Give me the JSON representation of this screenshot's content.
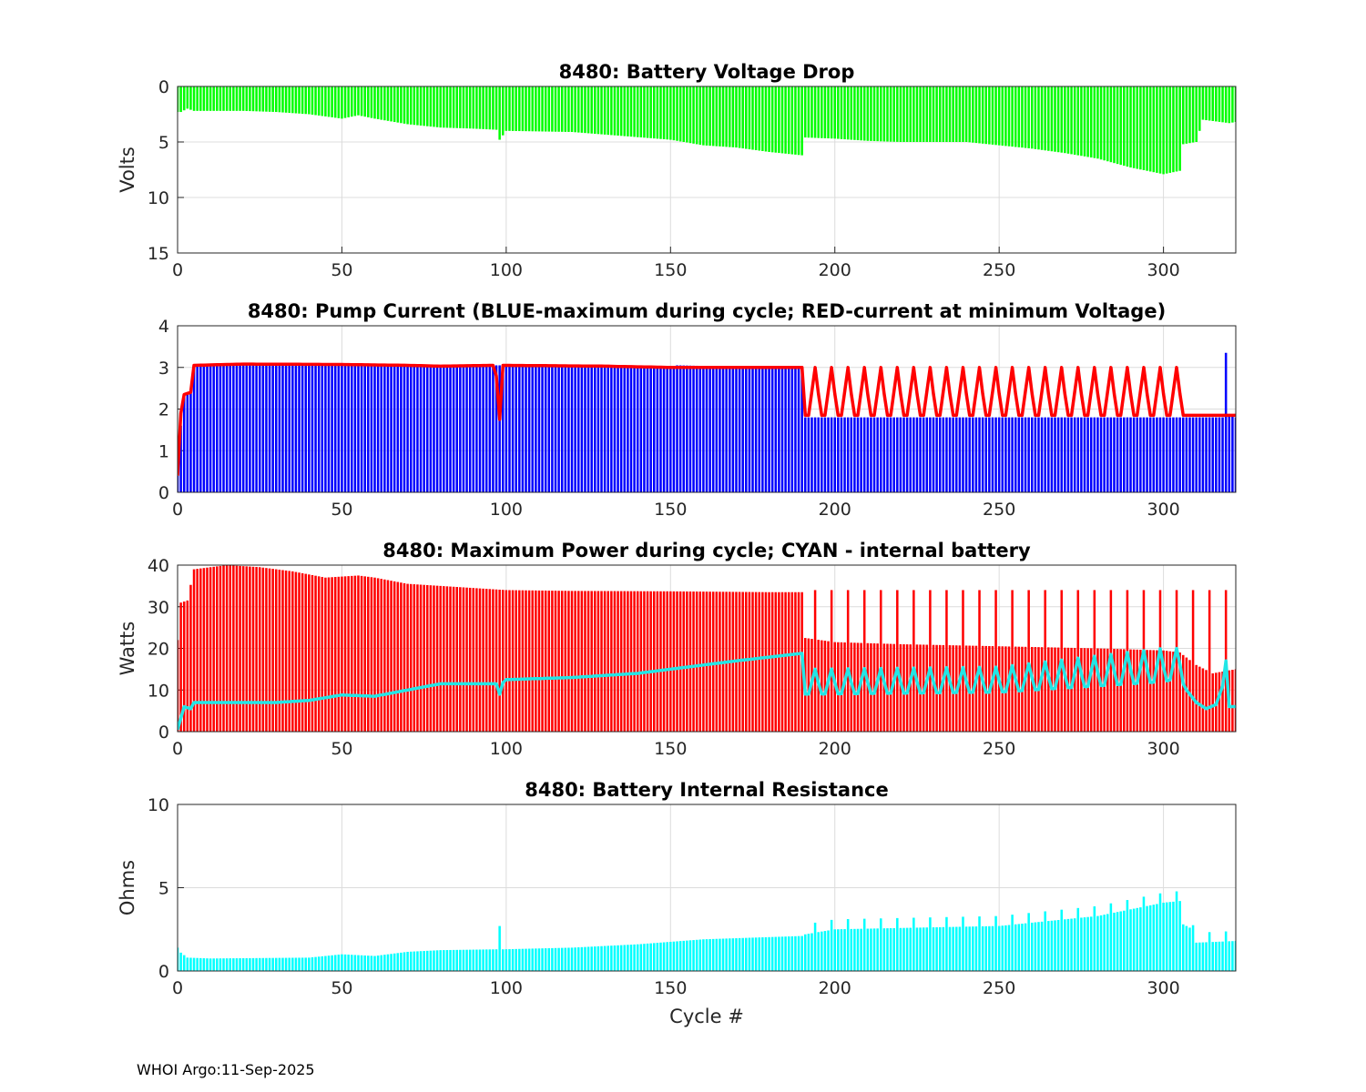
{
  "footer": "WHOI Argo:11-Sep-2025",
  "chart_data": [
    {
      "type": "bar",
      "title": "8480: Battery Voltage Drop",
      "xlabel": "",
      "ylabel": "Volts",
      "xlim": [
        0,
        322
      ],
      "ylim": [
        0,
        15
      ],
      "yreversed": true,
      "xticks": [
        "0",
        "50",
        "100",
        "150",
        "200",
        "250",
        "300"
      ],
      "yticks": [
        "0",
        "5",
        "10",
        "15"
      ],
      "grid": true,
      "series": [
        {
          "name": "voltage drop",
          "color": "#00ff00",
          "style": "bars",
          "points": [
            [
              1,
              2.3
            ],
            [
              3,
              2.0
            ],
            [
              5,
              2.2
            ],
            [
              10,
              2.2
            ],
            [
              20,
              2.2
            ],
            [
              30,
              2.3
            ],
            [
              40,
              2.5
            ],
            [
              50,
              2.9
            ],
            [
              55,
              2.6
            ],
            [
              60,
              2.9
            ],
            [
              70,
              3.4
            ],
            [
              80,
              3.7
            ],
            [
              90,
              3.8
            ],
            [
              97,
              3.9
            ],
            [
              98,
              4.8
            ],
            [
              100,
              4.0
            ],
            [
              120,
              4.1
            ],
            [
              150,
              4.8
            ],
            [
              160,
              5.3
            ],
            [
              170,
              5.5
            ],
            [
              180,
              5.9
            ],
            [
              190,
              6.2
            ],
            [
              191,
              4.6
            ],
            [
              200,
              4.7
            ],
            [
              210,
              4.9
            ],
            [
              220,
              5.0
            ],
            [
              240,
              5.0
            ],
            [
              250,
              5.3
            ],
            [
              260,
              5.6
            ],
            [
              270,
              6.0
            ],
            [
              280,
              6.5
            ],
            [
              290,
              7.3
            ],
            [
              300,
              7.9
            ],
            [
              305,
              7.6
            ],
            [
              306,
              5.2
            ],
            [
              310,
              5.0
            ],
            [
              312,
              3.0
            ],
            [
              320,
              3.3
            ],
            [
              322,
              3.2
            ]
          ]
        }
      ]
    },
    {
      "type": "bar",
      "title": "8480: Pump Current (BLUE-maximum during cycle; RED-current at minimum Voltage)",
      "xlabel": "",
      "ylabel": "",
      "xlim": [
        0,
        322
      ],
      "ylim": [
        0,
        4
      ],
      "xticks": [
        "0",
        "50",
        "100",
        "150",
        "200",
        "250",
        "300"
      ],
      "yticks": [
        "0",
        "1",
        "2",
        "3",
        "4"
      ],
      "grid": true,
      "series": [
        {
          "name": "BLUE-maximum during cycle",
          "color": "#0000ff",
          "style": "bars",
          "points": [
            [
              0,
              0.4
            ],
            [
              1,
              1.6
            ],
            [
              2,
              2.3
            ],
            [
              4,
              2.4
            ],
            [
              5,
              3.05
            ],
            [
              50,
              3.05
            ],
            [
              100,
              3.05
            ],
            [
              150,
              3.0
            ],
            [
              152,
              3.05
            ],
            [
              180,
              3.0
            ],
            [
              190,
              3.0
            ],
            [
              191,
              1.8
            ],
            [
              250,
              1.8
            ],
            [
              300,
              1.8
            ],
            [
              318,
              1.8
            ],
            [
              319,
              3.35
            ],
            [
              320,
              1.85
            ],
            [
              322,
              1.8
            ]
          ]
        },
        {
          "name": "RED-current at minimum Voltage",
          "color": "#ff0000",
          "style": "line",
          "oscillate_from": 191,
          "osc_period": 5,
          "osc_low": 1.85,
          "osc_high": 3.0,
          "points": [
            [
              0,
              0.4
            ],
            [
              1,
              1.9
            ],
            [
              2,
              2.35
            ],
            [
              4,
              2.4
            ],
            [
              5,
              3.05
            ],
            [
              20,
              3.08
            ],
            [
              50,
              3.07
            ],
            [
              70,
              3.05
            ],
            [
              80,
              3.03
            ],
            [
              96,
              3.05
            ],
            [
              97,
              2.8
            ],
            [
              98,
              1.75
            ],
            [
              99,
              3.05
            ],
            [
              130,
              3.03
            ],
            [
              150,
              3.0
            ],
            [
              190,
              3.0
            ],
            [
              191,
              1.85
            ],
            [
              322,
              1.85
            ]
          ]
        }
      ]
    },
    {
      "type": "bar",
      "title": "8480: Maximum Power during cycle; CYAN - internal battery",
      "xlabel": "",
      "ylabel": "Watts",
      "xlim": [
        0,
        322
      ],
      "ylim": [
        0,
        40
      ],
      "xticks": [
        "0",
        "50",
        "100",
        "150",
        "200",
        "250",
        "300"
      ],
      "yticks": [
        "0",
        "10",
        "20",
        "30",
        "40"
      ],
      "grid": true,
      "series": [
        {
          "name": "maximum power",
          "color": "#ff0000",
          "style": "bars",
          "spikes_from": 191,
          "spike_period": 5,
          "spike_high": 34.0,
          "points": [
            [
              0,
              22.0
            ],
            [
              1,
              31.0
            ],
            [
              3,
              31.5
            ],
            [
              5,
              39.0
            ],
            [
              10,
              39.5
            ],
            [
              15,
              40.0
            ],
            [
              25,
              39.5
            ],
            [
              35,
              38.5
            ],
            [
              45,
              37.0
            ],
            [
              55,
              37.5
            ],
            [
              60,
              37.0
            ],
            [
              70,
              35.5
            ],
            [
              80,
              35.0
            ],
            [
              90,
              34.5
            ],
            [
              100,
              34.0
            ],
            [
              120,
              33.8
            ],
            [
              150,
              33.7
            ],
            [
              180,
              33.5
            ],
            [
              190,
              33.5
            ],
            [
              191,
              22.5
            ],
            [
              200,
              21.5
            ],
            [
              220,
              21.0
            ],
            [
              250,
              20.5
            ],
            [
              280,
              20.0
            ],
            [
              300,
              19.5
            ],
            [
              305,
              19.0
            ],
            [
              310,
              16.0
            ],
            [
              315,
              14.0
            ],
            [
              322,
              15.0
            ]
          ]
        },
        {
          "name": "CYAN - internal battery",
          "color": "#22e6e6",
          "style": "line",
          "oscillate_from": 191,
          "osc_period": 5,
          "osc_low_points": [
            [
              191,
              9.0
            ],
            [
              250,
              9.5
            ],
            [
              300,
              12.0
            ],
            [
              305,
              13.0
            ]
          ],
          "osc_high_points": [
            [
              191,
              15.0
            ],
            [
              250,
              15.5
            ],
            [
              300,
              20.0
            ],
            [
              305,
              20.0
            ]
          ],
          "points": [
            [
              0,
              0.5
            ],
            [
              2,
              6.0
            ],
            [
              4,
              5.5
            ],
            [
              5,
              7.0
            ],
            [
              20,
              7.0
            ],
            [
              30,
              7.0
            ],
            [
              40,
              7.5
            ],
            [
              50,
              8.8
            ],
            [
              60,
              8.5
            ],
            [
              70,
              10.0
            ],
            [
              80,
              11.5
            ],
            [
              90,
              11.5
            ],
            [
              97,
              11.5
            ],
            [
              98,
              9.0
            ],
            [
              99,
              11.8
            ],
            [
              100,
              12.5
            ],
            [
              120,
              13.0
            ],
            [
              140,
              14.0
            ],
            [
              150,
              15.0
            ],
            [
              170,
              17.0
            ],
            [
              190,
              18.8
            ],
            [
              191,
              9.0
            ],
            [
              305,
              13.0
            ],
            [
              307,
              10.0
            ],
            [
              310,
              7.0
            ],
            [
              313,
              5.5
            ],
            [
              316,
              6.5
            ],
            [
              318,
              11.0
            ],
            [
              319,
              17.0
            ],
            [
              320,
              6.0
            ],
            [
              322,
              6.0
            ]
          ]
        }
      ]
    },
    {
      "type": "bar",
      "title": "8480: Battery Internal Resistance",
      "xlabel": "Cycle #",
      "ylabel": "Ohms",
      "xlim": [
        0,
        322
      ],
      "ylim": [
        0,
        10
      ],
      "xticks": [
        "0",
        "50",
        "100",
        "150",
        "200",
        "250",
        "300"
      ],
      "yticks": [
        "0",
        "5",
        "10"
      ],
      "grid": true,
      "series": [
        {
          "name": "internal resistance",
          "color": "#00ffff",
          "style": "bars",
          "spikes_from": 191,
          "spike_period": 5,
          "spike_rise": 0.6,
          "points": [
            [
              0,
              1.4
            ],
            [
              1,
              1.1
            ],
            [
              3,
              0.8
            ],
            [
              10,
              0.75
            ],
            [
              40,
              0.8
            ],
            [
              50,
              1.0
            ],
            [
              60,
              0.9
            ],
            [
              70,
              1.15
            ],
            [
              80,
              1.25
            ],
            [
              97,
              1.3
            ],
            [
              98,
              2.7
            ],
            [
              99,
              1.3
            ],
            [
              120,
              1.4
            ],
            [
              140,
              1.6
            ],
            [
              160,
              1.9
            ],
            [
              190,
              2.1
            ],
            [
              191,
              2.2
            ],
            [
              200,
              2.5
            ],
            [
              250,
              2.7
            ],
            [
              280,
              3.3
            ],
            [
              300,
              4.1
            ],
            [
              305,
              4.2
            ],
            [
              306,
              2.8
            ],
            [
              308,
              2.6
            ],
            [
              310,
              1.7
            ],
            [
              322,
              1.8
            ]
          ]
        }
      ]
    }
  ]
}
